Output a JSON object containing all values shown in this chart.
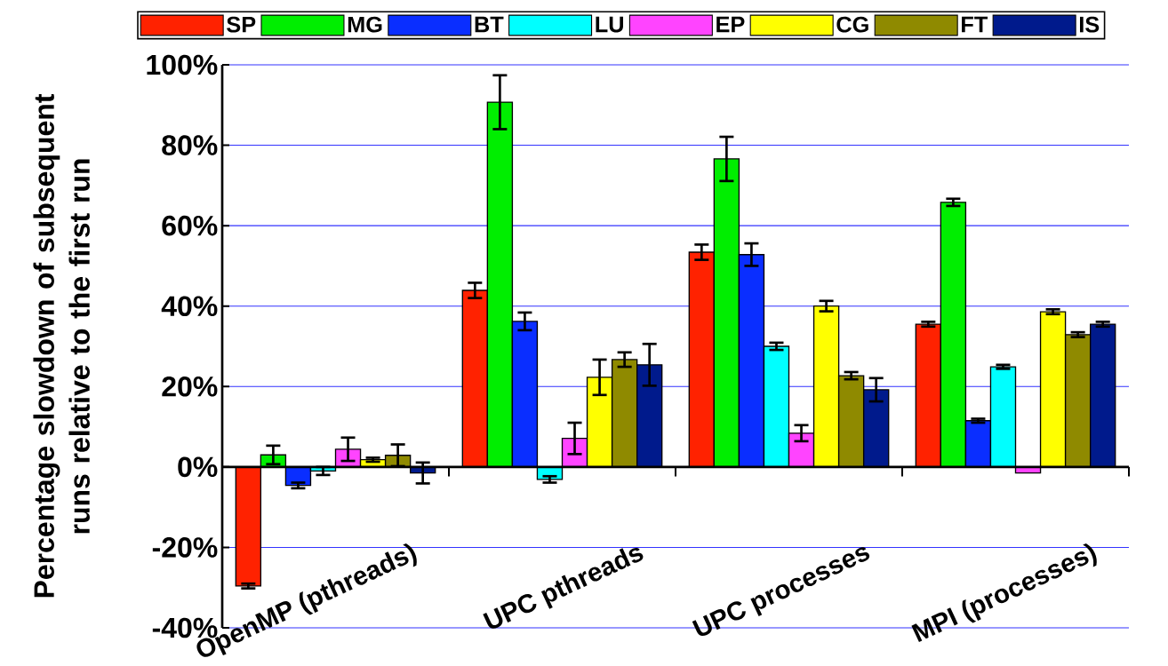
{
  "chart_data": {
    "type": "bar",
    "ylabel": "Percentage slowdown of subsequent runs relative to the first run",
    "categories": [
      "OpenMP (pthreads)",
      "UPC pthreads",
      "UPC processes",
      "MPI (processes)"
    ],
    "series": [
      {
        "name": "SP",
        "color": "#ff2200",
        "values": [
          -29.6,
          43.9,
          53.4,
          35.5
        ],
        "errors": [
          0.6,
          1.9,
          1.9,
          0.6
        ]
      },
      {
        "name": "MG",
        "color": "#00ee00",
        "values": [
          3.0,
          90.7,
          76.6,
          65.8
        ],
        "errors": [
          2.3,
          6.7,
          5.5,
          0.9
        ]
      },
      {
        "name": "BT",
        "color": "#0a2eff",
        "values": [
          -4.6,
          36.2,
          52.8,
          11.5
        ],
        "errors": [
          0.7,
          2.2,
          2.8,
          0.5
        ]
      },
      {
        "name": "LU",
        "color": "#00ffff",
        "values": [
          -1.0,
          -3.1,
          30.0,
          24.9
        ],
        "errors": [
          1.0,
          0.8,
          0.9,
          0.5
        ]
      },
      {
        "name": "EP",
        "color": "#ff44ff",
        "values": [
          4.4,
          7.1,
          8.4,
          -1.5
        ],
        "errors": [
          2.9,
          3.9,
          2.0,
          null
        ]
      },
      {
        "name": "CG",
        "color": "#ffff00",
        "values": [
          1.8,
          22.3,
          40.0,
          38.6
        ],
        "errors": [
          0.5,
          4.4,
          1.3,
          0.6
        ]
      },
      {
        "name": "FT",
        "color": "#8f8a00",
        "values": [
          2.9,
          26.7,
          22.7,
          32.9
        ],
        "errors": [
          2.7,
          1.8,
          0.9,
          0.6
        ]
      },
      {
        "name": "IS",
        "color": "#001a8c",
        "values": [
          -1.5,
          25.4,
          19.2,
          35.5
        ],
        "errors": [
          2.6,
          5.2,
          2.9,
          0.6
        ]
      }
    ],
    "ylim": [
      -40,
      100
    ],
    "yticks": [
      {
        "value": -40,
        "label": "-40%"
      },
      {
        "value": -20,
        "label": "-20%"
      },
      {
        "value": 0,
        "label": "0%"
      },
      {
        "value": 20,
        "label": "20%"
      },
      {
        "value": 40,
        "label": "40%"
      },
      {
        "value": 60,
        "label": "60%"
      },
      {
        "value": 80,
        "label": "80%"
      },
      {
        "value": 100,
        "label": "100%"
      }
    ],
    "grid": "y",
    "legend": "top"
  }
}
